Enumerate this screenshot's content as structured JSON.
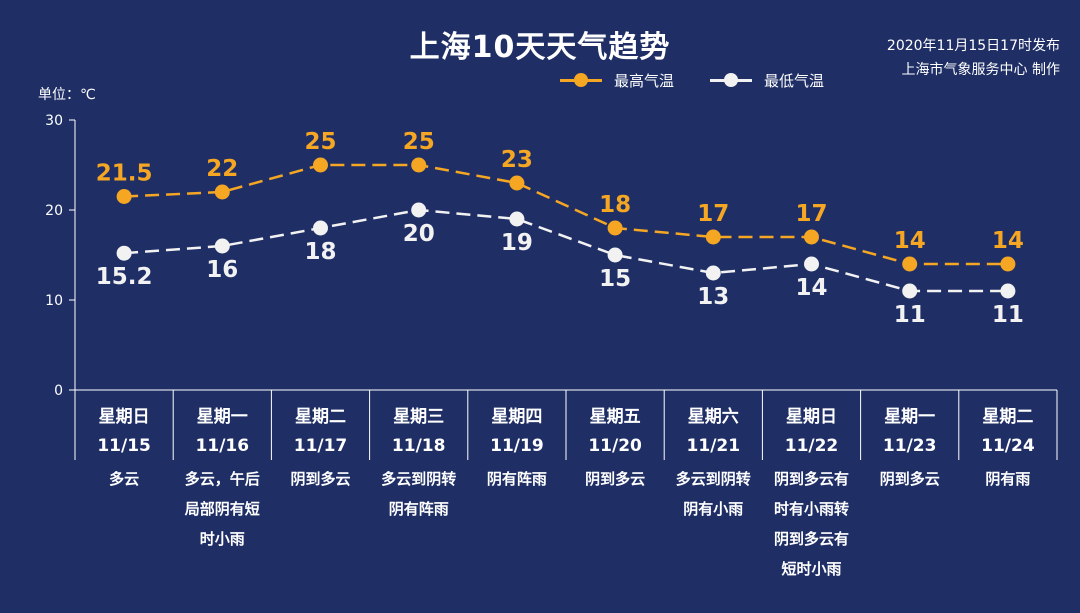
{
  "title": "上海10天天气趋势",
  "publish": {
    "line1": "2020年11月15日17时发布",
    "line2": "上海市气象服务中心 制作"
  },
  "unit_label": "单位：℃",
  "legend": {
    "high": "最高气温",
    "low": "最低气温"
  },
  "colors": {
    "background": "#1f2f66",
    "high": "#f5a623",
    "low": "#f2f2f2",
    "axis": "#ffffff"
  },
  "chart_data": {
    "type": "line",
    "title": "上海10天天气趋势",
    "ylabel": "单位：℃",
    "ylim": [
      0,
      30
    ],
    "yticks": [
      "0",
      "10",
      "20",
      "30"
    ],
    "grid": false,
    "legend_position": "top-right",
    "categories": [
      {
        "weekday": "星期日",
        "date": "11/15",
        "weather": [
          "多云"
        ]
      },
      {
        "weekday": "星期一",
        "date": "11/16",
        "weather": [
          "多云，午后",
          "局部阴有短",
          "时小雨"
        ]
      },
      {
        "weekday": "星期二",
        "date": "11/17",
        "weather": [
          "阴到多云"
        ]
      },
      {
        "weekday": "星期三",
        "date": "11/18",
        "weather": [
          "多云到阴转",
          "阴有阵雨"
        ]
      },
      {
        "weekday": "星期四",
        "date": "11/19",
        "weather": [
          "阴有阵雨"
        ]
      },
      {
        "weekday": "星期五",
        "date": "11/20",
        "weather": [
          "阴到多云"
        ]
      },
      {
        "weekday": "星期六",
        "date": "11/21",
        "weather": [
          "多云到阴转",
          "阴有小雨"
        ]
      },
      {
        "weekday": "星期日",
        "date": "11/22",
        "weather": [
          "阴到多云有",
          "时有小雨转",
          "阴到多云有",
          "短时小雨"
        ]
      },
      {
        "weekday": "星期一",
        "date": "11/23",
        "weather": [
          "阴到多云"
        ]
      },
      {
        "weekday": "星期二",
        "date": "11/24",
        "weather": [
          "阴有雨"
        ]
      }
    ],
    "series": [
      {
        "name": "最高气温",
        "values": [
          21.5,
          22,
          25,
          25,
          23,
          18,
          17,
          17,
          14,
          14
        ],
        "labels": [
          "21.5",
          "22",
          "25",
          "25",
          "23",
          "18",
          "17",
          "17",
          "14",
          "14"
        ]
      },
      {
        "name": "最低气温",
        "values": [
          15.2,
          16,
          18,
          20,
          19,
          15,
          13,
          14,
          11,
          11
        ],
        "labels": [
          "15.2",
          "16",
          "18",
          "20",
          "19",
          "15",
          "13",
          "14",
          "11",
          "11"
        ]
      }
    ]
  }
}
